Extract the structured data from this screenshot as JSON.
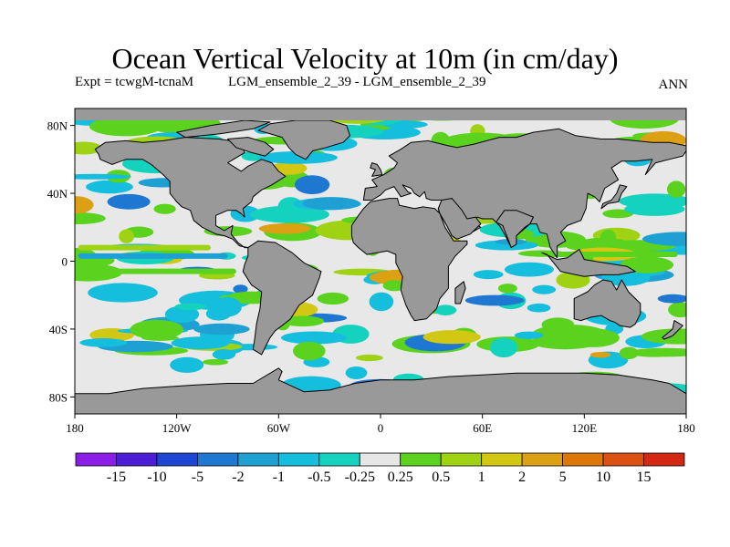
{
  "header": {
    "title": "Ocean Vertical Velocity at 10m (in cm/day)",
    "experiment": "Expt = tcwgM-tcnaM",
    "ensemble": "LGM_ensemble_2_39 - LGM_ensemble_2_39",
    "season": "ANN"
  },
  "map": {
    "lon_range": [
      -180,
      180
    ],
    "lat_range": [
      -90,
      90
    ],
    "lon_ticks": [
      {
        "value": -180,
        "label": "180"
      },
      {
        "value": -120,
        "label": "120W"
      },
      {
        "value": -60,
        "label": "60W"
      },
      {
        "value": 0,
        "label": "0"
      },
      {
        "value": 60,
        "label": "60E"
      },
      {
        "value": 120,
        "label": "120E"
      },
      {
        "value": 180,
        "label": "180"
      }
    ],
    "lat_ticks": [
      {
        "value": 80,
        "label": "80N"
      },
      {
        "value": 40,
        "label": "40N"
      },
      {
        "value": 0,
        "label": "0"
      },
      {
        "value": -40,
        "label": "40S"
      },
      {
        "value": -80,
        "label": "80S"
      }
    ],
    "colors": {
      "land": "#999999",
      "near_zero": "#e8e8e8",
      "coast": "#000000",
      "frame": "#000000"
    }
  },
  "colorbar": {
    "colors": [
      "#8a1ee6",
      "#4b1ed6",
      "#1e46d2",
      "#1e78d2",
      "#1ea0d2",
      "#14bedc",
      "#14d2be",
      "#e6e6e6",
      "#5ad21e",
      "#a0d214",
      "#d2c814",
      "#dca014",
      "#dc780a",
      "#dc5014",
      "#d22814"
    ],
    "labels": [
      "-15",
      "-10",
      "-5",
      "-2",
      "-1",
      "-0.5",
      "-0.25",
      "0.25",
      "0.5",
      "1",
      "2",
      "5",
      "10",
      "15"
    ]
  }
}
